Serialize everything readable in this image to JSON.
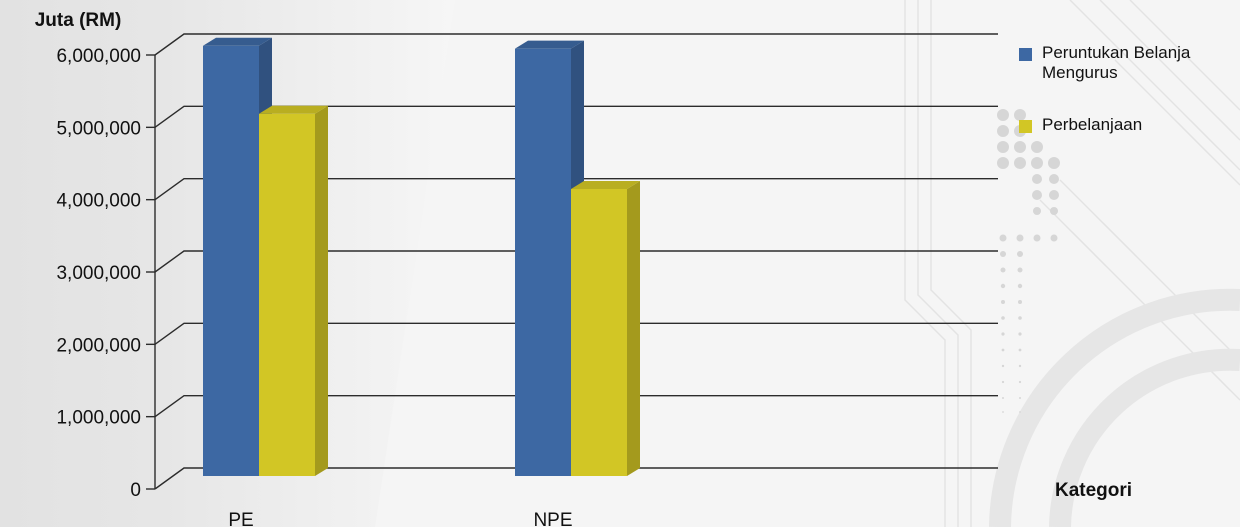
{
  "chart_data": {
    "type": "bar",
    "ylabel": "Juta (RM)",
    "xlabel": "Kategori",
    "categories": [
      "PE",
      "NPE"
    ],
    "yticks": [
      0,
      1000000,
      2000000,
      3000000,
      4000000,
      5000000,
      6000000
    ],
    "ytick_labels": [
      "0",
      "1,000,000",
      "2,000,000",
      "3,000,000",
      "4,000,000",
      "5,000,000",
      "6,000,000"
    ],
    "ylim": [
      0,
      6000000
    ],
    "grid": true,
    "legend_position": "top-right",
    "series": [
      {
        "name": "Peruntukan Belanja Mengurus",
        "legend_lines": [
          "Peruntukan Belanja",
          "Mengurus"
        ],
        "color": "#3d68a3",
        "values": [
          5920000,
          5880000
        ]
      },
      {
        "name": "Perbelanjaan",
        "legend_lines": [
          "Perbelanjaan"
        ],
        "color": "#d2c625",
        "values": [
          4980000,
          3940000
        ]
      }
    ]
  }
}
